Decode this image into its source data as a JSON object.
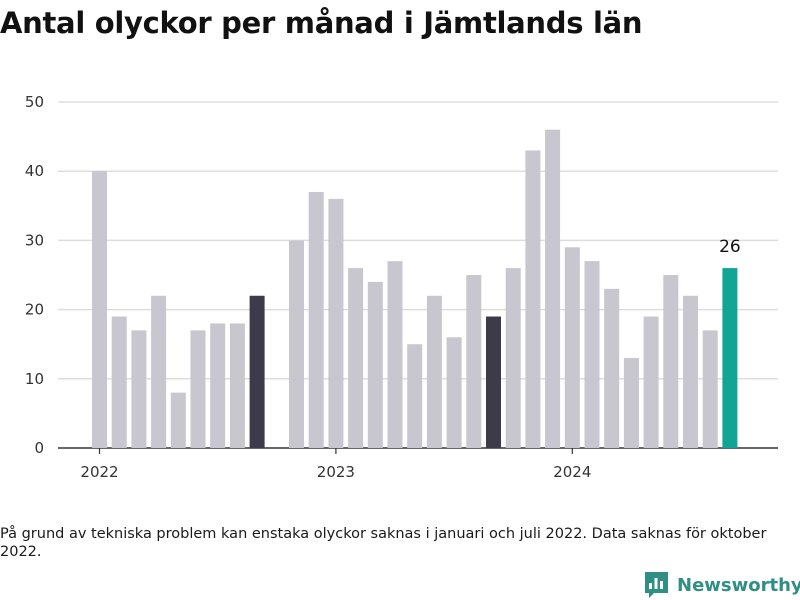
{
  "title": "Antal olyckor per månad i Jämtlands län",
  "footnote": "På grund av tekniska problem kan enstaka olyckor saknas i januari och juli 2022. Data saknas för oktober 2022.",
  "brand": {
    "name": "Newsworthy",
    "logo_icon": "bar-chart-icon",
    "color": "#2f8f83"
  },
  "chart_data": {
    "type": "bar",
    "title": "Antal olyckor per månad i Jämtlands län",
    "xlabel": "",
    "ylabel": "",
    "ylim": [
      0,
      50
    ],
    "yticks": [
      0,
      10,
      20,
      30,
      40,
      50
    ],
    "grid": true,
    "x_tick_labels": [
      {
        "label": "2022",
        "at": "2022-01"
      },
      {
        "label": "2023",
        "at": "2023-01"
      },
      {
        "label": "2024",
        "at": "2024-01"
      }
    ],
    "categories": [
      "2022-01",
      "2022-02",
      "2022-03",
      "2022-04",
      "2022-05",
      "2022-06",
      "2022-07",
      "2022-08",
      "2022-09",
      "2022-10",
      "2022-11",
      "2022-12",
      "2023-01",
      "2023-02",
      "2023-03",
      "2023-04",
      "2023-05",
      "2023-06",
      "2023-07",
      "2023-08",
      "2023-09",
      "2023-10",
      "2023-11",
      "2023-12",
      "2024-01",
      "2024-02",
      "2024-03",
      "2024-04",
      "2024-05",
      "2024-06",
      "2024-07",
      "2024-08",
      "2024-09"
    ],
    "values": [
      40,
      19,
      17,
      22,
      8,
      17,
      18,
      18,
      22,
      null,
      30,
      37,
      36,
      26,
      24,
      27,
      15,
      22,
      16,
      25,
      19,
      26,
      43,
      46,
      29,
      27,
      23,
      13,
      19,
      25,
      22,
      17,
      26
    ],
    "highlighted": [
      {
        "category": "2022-09",
        "color": "#3d3b4a"
      },
      {
        "category": "2023-09",
        "color": "#3d3b4a"
      },
      {
        "category": "2024-09",
        "color": "#12a596",
        "label": "26"
      }
    ],
    "colors": {
      "default": "#c8c6ce",
      "previous_years": "#3d3b4a",
      "current": "#12a596",
      "grid": "#dddddd",
      "axis": "#333333"
    }
  }
}
